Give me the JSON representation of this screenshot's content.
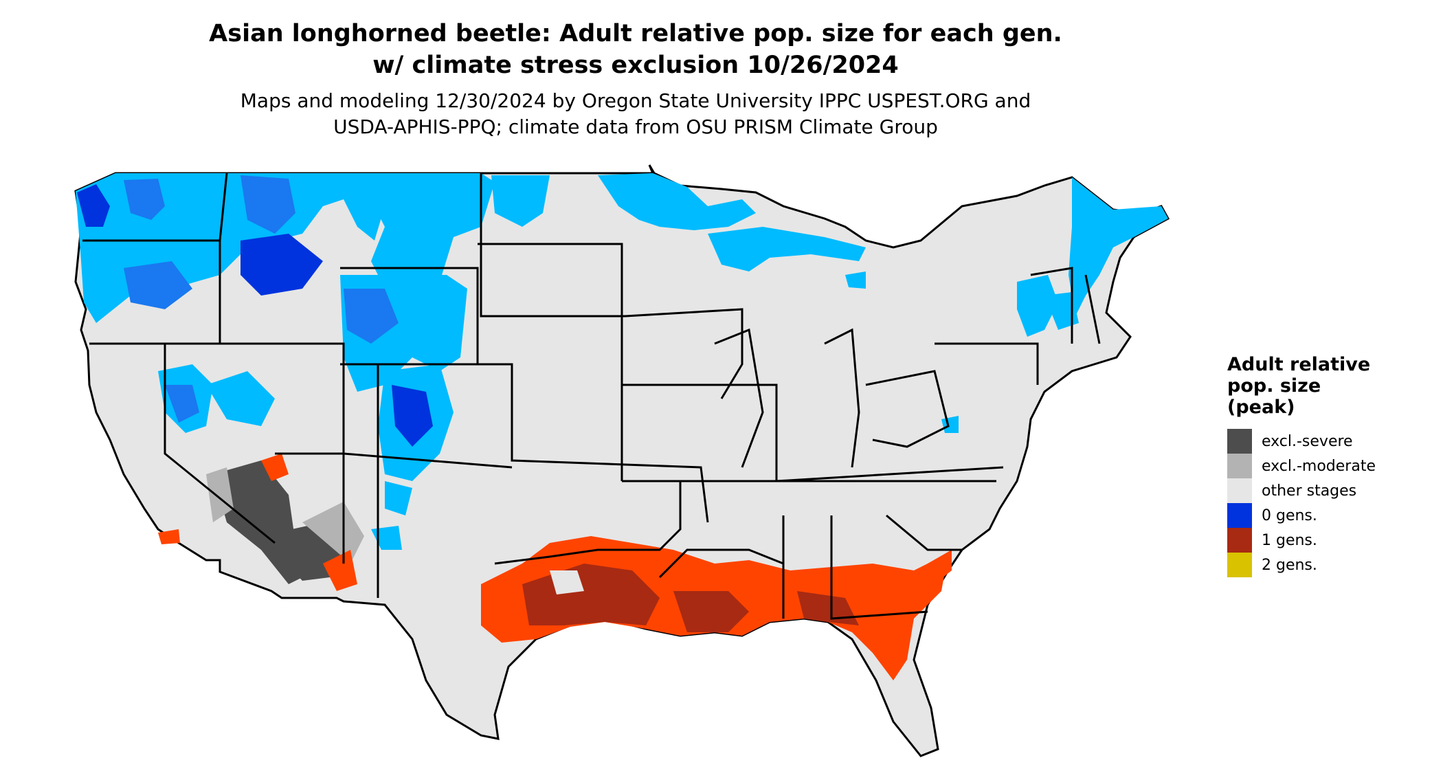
{
  "title": {
    "line1": "Asian longhorned beetle: Adult relative pop. size for each gen.",
    "line2": "w/ climate stress exclusion 10/26/2024"
  },
  "subtitle": {
    "line1": "Maps and modeling 12/30/2024 by Oregon State University IPPC USPEST.ORG and",
    "line2": "USDA-APHIS-PPQ; climate data from OSU PRISM Climate Group"
  },
  "legend": {
    "title_lines": [
      "Adult relative",
      "pop. size",
      "(peak)"
    ],
    "items": [
      {
        "label": "excl.-severe",
        "color": "#4d4d4d"
      },
      {
        "label": "excl.-moderate",
        "color": "#b3b3b3"
      },
      {
        "label": "other stages",
        "color": "#e6e6e6"
      },
      {
        "label": "0 gens.",
        "color": "#0033dd"
      },
      {
        "label": "1 gens.",
        "color": "#a82a12"
      },
      {
        "label": "2 gens.",
        "color": "#d9c200"
      }
    ]
  },
  "map_colors": {
    "land": "#e6e6e6",
    "border": "#000000",
    "zero_gens_light": "#00bbff",
    "zero_gens_mid": "#1a78f0",
    "zero_gens_dark": "#0033dd",
    "one_gen_bright": "#ff4400",
    "one_gen_dark": "#a82a12",
    "excl_severe": "#4d4d4d",
    "excl_moderate": "#b3b3b3"
  }
}
